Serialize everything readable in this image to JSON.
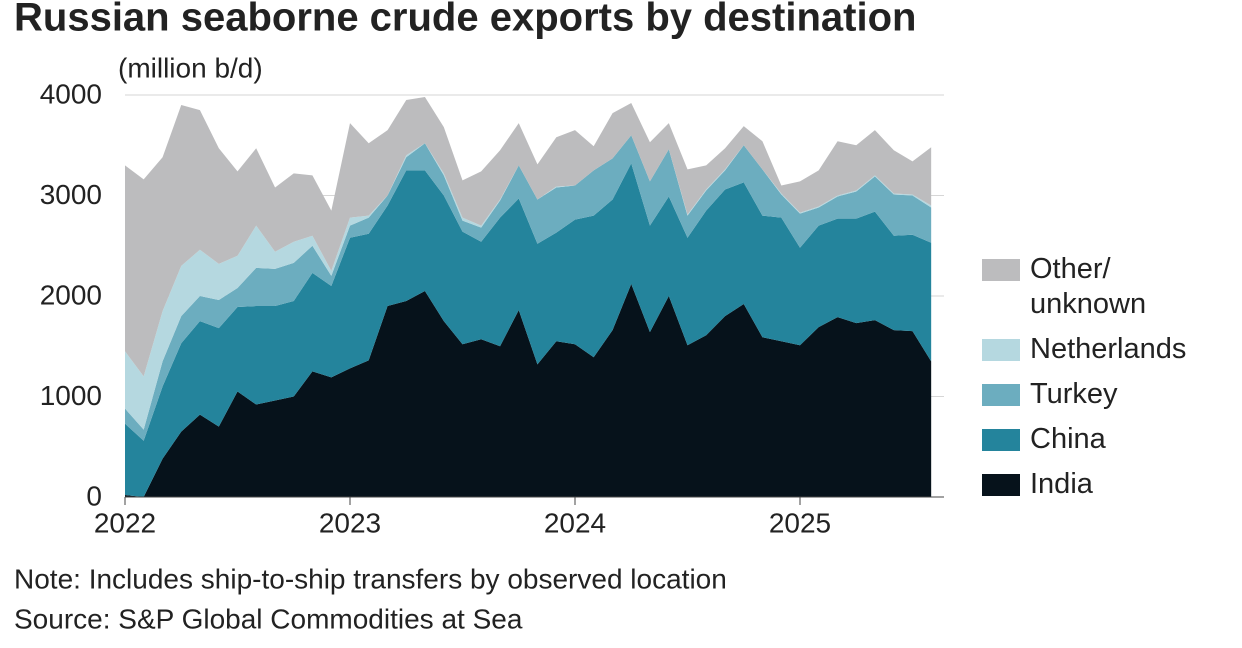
{
  "chart_data": {
    "type": "stacked_area",
    "title": "Russian seaborne crude exports by destination",
    "y_label": "(million b/d)",
    "note": "Note: Includes ship-to-ship transfers by observed location",
    "source": "Source: S&P Global Commodities at Sea",
    "x": [
      2022,
      2022.083,
      2022.167,
      2022.25,
      2022.333,
      2022.417,
      2022.5,
      2022.583,
      2022.667,
      2022.75,
      2022.833,
      2022.917,
      2023,
      2023.083,
      2023.167,
      2023.25,
      2023.333,
      2023.417,
      2023.5,
      2023.583,
      2023.667,
      2023.75,
      2023.833,
      2023.917,
      2024,
      2024.083,
      2024.167,
      2024.25,
      2024.333,
      2024.417,
      2024.5,
      2024.583,
      2024.667,
      2024.75,
      2024.833,
      2024.917,
      2025,
      2025.083,
      2025.167,
      2025.25,
      2025.333,
      2025.417,
      2025.5,
      2025.583
    ],
    "xlim": [
      2022,
      2025.64
    ],
    "xticks": [
      2022,
      2023,
      2024,
      2025
    ],
    "ylim": [
      0,
      4000
    ],
    "yticks": [
      0,
      1000,
      2000,
      3000,
      4000
    ],
    "grid": true,
    "legend": "right",
    "series": [
      {
        "name": "India",
        "color": "#06121b",
        "values": [
          20,
          0,
          380,
          650,
          820,
          700,
          1050,
          920,
          960,
          1000,
          1250,
          1190,
          1280,
          1360,
          1900,
          1950,
          2050,
          1750,
          1520,
          1570,
          1500,
          1860,
          1320,
          1550,
          1520,
          1390,
          1660,
          2120,
          1640,
          2000,
          1510,
          1610,
          1800,
          1920,
          1590,
          1550,
          1510,
          1690,
          1790,
          1730,
          1760,
          1660,
          1650,
          1350
        ]
      },
      {
        "name": "China",
        "color": "#24849c",
        "values": [
          710,
          560,
          720,
          880,
          930,
          980,
          840,
          980,
          940,
          950,
          980,
          910,
          1300,
          1260,
          1000,
          1300,
          1200,
          1250,
          1120,
          970,
          1280,
          1110,
          1200,
          1080,
          1240,
          1410,
          1300,
          1200,
          1060,
          990,
          1070,
          1240,
          1260,
          1210,
          1210,
          1230,
          970,
          1010,
          980,
          1040,
          1080,
          940,
          960,
          1180
        ]
      },
      {
        "name": "Turkey",
        "color": "#6cadbf",
        "values": [
          150,
          110,
          250,
          270,
          250,
          280,
          190,
          380,
          370,
          380,
          270,
          100,
          120,
          160,
          100,
          130,
          270,
          200,
          110,
          140,
          170,
          330,
          440,
          450,
          340,
          450,
          410,
          280,
          440,
          470,
          220,
          200,
          190,
          370,
          460,
          230,
          340,
          180,
          220,
          270,
          350,
          410,
          390,
          350
        ]
      },
      {
        "name": "Netherlands",
        "color": "#b5d8e0",
        "values": [
          570,
          530,
          500,
          500,
          460,
          360,
          320,
          420,
          170,
          210,
          100,
          50,
          80,
          20,
          0,
          20,
          0,
          20,
          30,
          20,
          10,
          0,
          0,
          10,
          0,
          0,
          0,
          0,
          0,
          0,
          10,
          10,
          10,
          0,
          0,
          10,
          10,
          10,
          10,
          10,
          10,
          10,
          10,
          20
        ]
      },
      {
        "name": "Other/ unknown",
        "color": "#bcbcbe",
        "values": [
          1850,
          1960,
          1530,
          1600,
          1390,
          1150,
          840,
          770,
          640,
          680,
          600,
          600,
          940,
          720,
          650,
          550,
          460,
          460,
          370,
          540,
          490,
          420,
          350,
          490,
          550,
          240,
          450,
          320,
          390,
          260,
          450,
          240,
          210,
          190,
          280,
          80,
          310,
          360,
          540,
          450,
          450,
          430,
          330,
          580
        ]
      }
    ]
  }
}
